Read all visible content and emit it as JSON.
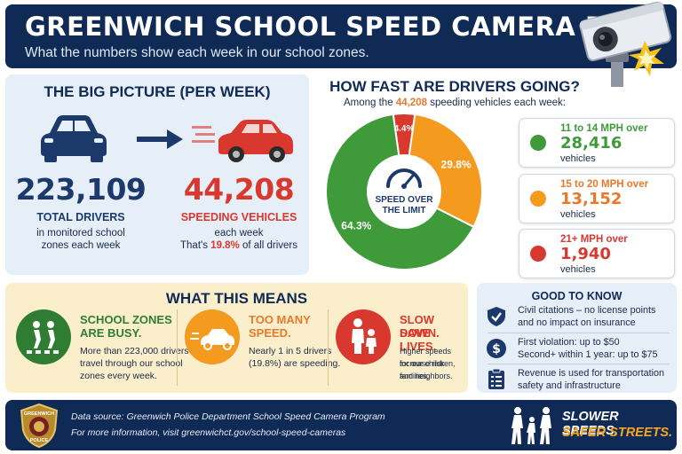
{
  "header": {
    "title": "GREENWICH SCHOOL SPEED CAMERA DATA",
    "subtitle": "What the numbers show each week in our school zones.",
    "camera_icon": "speed-camera-icon"
  },
  "big_picture": {
    "title": "THE BIG PICTURE (PER WEEK)",
    "total_drivers": "223,109",
    "total_label": "TOTAL DRIVERS",
    "total_desc_line1": "in monitored school",
    "total_desc_line2": "zones each week",
    "speeding": "44,208",
    "speeding_label": "SPEEDING VEHICLES",
    "speeding_desc": "each week",
    "share_prefix": "That's ",
    "share_pct": "19.8%",
    "share_suffix": " of all drivers",
    "colors": {
      "navy": "#1b3a6b",
      "red": "#d9382f",
      "orange": "#e8792a"
    }
  },
  "speed": {
    "title": "HOW FAST ARE DRIVERS GOING?",
    "sub_prefix": "Among the ",
    "sub_highlight": "44,208",
    "sub_suffix": " speeding vehicles each week:",
    "center_line1": "SPEED OVER",
    "center_line2": "THE LIMIT",
    "legend": [
      {
        "range": "11 to 14 MPH over",
        "value": "28,416",
        "unit": "vehicles",
        "color": "#3f9a3a"
      },
      {
        "range": "15 to 20 MPH over",
        "value": "13,152",
        "unit": "vehicles",
        "color": "#f39a1f"
      },
      {
        "range": "21+ MPH over",
        "value": "1,940",
        "unit": "vehicles",
        "color": "#d9382f"
      }
    ]
  },
  "chart_data": {
    "type": "pie",
    "categories": [
      "11 to 14 MPH over",
      "15 to 20 MPH over",
      "21+ MPH over"
    ],
    "values": [
      64.3,
      29.8,
      4.4
    ],
    "labels": [
      "64.3%",
      "29.8%",
      "4.4%"
    ],
    "counts": [
      28416,
      13152,
      1940
    ],
    "colors": [
      "#3f9a3a",
      "#f39a1f",
      "#d9382f"
    ]
  },
  "means": {
    "title": "WHAT THIS MEANS",
    "items": [
      {
        "head1": "SCHOOL ZONES",
        "head2": "ARE BUSY.",
        "body": [
          "More than 223,000 drivers",
          "travel through our school",
          "zones every week."
        ],
        "color": "#2f7d32",
        "icon": "school-crossing-icon"
      },
      {
        "head1": "TOO MANY",
        "head2": "SPEED.",
        "body": [
          "Nearly 1 in 5 drivers",
          "(19.8%) are speeding."
        ],
        "color": "#e8792a",
        "icon": "speeding-car-icon"
      },
      {
        "head1": "SLOW DOWN.",
        "head2": "SAVE LIVES.",
        "body": [
          "Higher speeds increase risk",
          "for our children, families,",
          "and neighbors."
        ],
        "color": "#d9382f",
        "icon": "family-icon"
      }
    ]
  },
  "good_to_know": {
    "title": "GOOD TO KNOW",
    "items": [
      {
        "line1": "Civil citations – no license points",
        "line2": "and no impact on insurance",
        "icon": "shield-check-icon"
      },
      {
        "line1": "First violation: up to $50",
        "line2": "Second+ within 1 year: up to $75",
        "icon": "dollar-icon"
      },
      {
        "line1": "Revenue is used for transportation",
        "line2": "safety and infrastructure",
        "icon": "checklist-icon"
      }
    ]
  },
  "footer": {
    "source": "Data source: Greenwich Police Department School Speed Camera Program",
    "info": "For more information, visit greenwichct.gov/school-speed-cameras",
    "badge_top": "GREENWICH",
    "badge_bottom": "POLICE",
    "slogan1": "SLOWER SPEEDS.",
    "slogan2": "SAFER STREETS.",
    "badge_icon": "police-badge-icon",
    "family_icon": "family-walking-icon"
  }
}
